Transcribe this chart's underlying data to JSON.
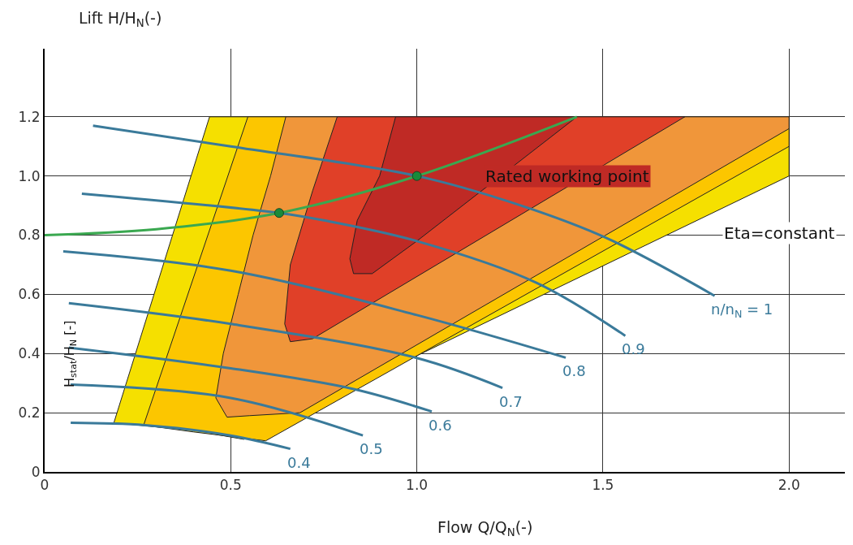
{
  "chart_data": {
    "type": "line",
    "xlabel": "Flow Q/Q$_{N}$(-)",
    "ylabel": "Lift H/H$_{N}$(-)",
    "xlim": [
      0,
      2.15
    ],
    "ylim": [
      0,
      1.43
    ],
    "xticks": [
      0,
      0.5,
      {
        "value": 1.0,
        "label": "1.0"
      },
      1.5,
      {
        "value": 2.0,
        "label": "2.0"
      }
    ],
    "yticks": [
      0,
      0.2,
      0.4,
      0.6,
      0.8,
      {
        "value": 1.0,
        "label": "1.0"
      },
      1.2
    ],
    "grid": true,
    "line_style": "solid",
    "series": [
      {
        "type": "area",
        "color": "#f5e000",
        "x": [
          0.443,
          2.0,
          2.0,
          0.535,
          0.4,
          0.186
        ],
        "values": [
          1.2,
          1.2,
          1.0,
          0.11,
          0.14,
          0.166
        ]
      },
      {
        "type": "area",
        "color": "#fcc600",
        "x": [
          0.546,
          2.0,
          2.0,
          0.594,
          0.4,
          0.266
        ],
        "values": [
          1.2,
          1.2,
          1.1,
          0.105,
          0.135,
          0.158
        ]
      },
      {
        "type": "area",
        "color": "#f0963a",
        "x": [
          0.648,
          2.0,
          2.0,
          0.686,
          0.55,
          0.49,
          0.46,
          0.48,
          0.52,
          0.56,
          0.607
        ],
        "values": [
          1.2,
          1.2,
          1.16,
          0.2,
          0.19,
          0.185,
          0.25,
          0.4,
          0.6,
          0.8,
          1.0
        ]
      },
      {
        "type": "area",
        "color": "#e04028",
        "x": [
          0.786,
          1.72,
          0.72,
          0.66,
          0.645,
          0.66,
          0.72
        ],
        "values": [
          1.2,
          1.2,
          0.45,
          0.44,
          0.5,
          0.7,
          0.95
        ]
      },
      {
        "type": "area",
        "color": "#bf2a25",
        "x": [
          0.943,
          1.43,
          1.0,
          0.88,
          0.83,
          0.82,
          0.84,
          0.9
        ],
        "values": [
          1.2,
          1.2,
          0.78,
          0.67,
          0.67,
          0.72,
          0.85,
          1.0
        ]
      },
      {
        "name": "n/n$_{N}$ = 1",
        "color": "#3a7a9a",
        "x": [
          0.13,
          0.5,
          1.0,
          1.28,
          1.51,
          1.8
        ],
        "values": [
          1.17,
          1.1,
          1.0,
          0.9,
          0.79,
          0.595
        ]
      },
      {
        "name": "0.9",
        "color": "#3a7a9a",
        "x": [
          0.1,
          0.63,
          0.75,
          1.0,
          1.32,
          1.56
        ],
        "values": [
          0.94,
          0.875,
          0.85,
          0.78,
          0.64,
          0.46
        ]
      },
      {
        "name": "0.8",
        "color": "#3a7a9a",
        "x": [
          0.05,
          0.5,
          1.0,
          1.4
        ],
        "values": [
          0.745,
          0.68,
          0.53,
          0.386
        ]
      },
      {
        "name": "0.7",
        "color": "#3a7a9a",
        "x": [
          0.065,
          0.5,
          1.0,
          1.23
        ],
        "values": [
          0.57,
          0.5,
          0.385,
          0.284
        ]
      },
      {
        "name": "0.6",
        "color": "#3a7a9a",
        "x": [
          0.065,
          0.5,
          0.83,
          1.04
        ],
        "values": [
          0.42,
          0.35,
          0.28,
          0.204
        ]
      },
      {
        "name": "0.5",
        "color": "#3a7a9a",
        "x": [
          0.07,
          0.5,
          0.855
        ],
        "values": [
          0.295,
          0.25,
          0.123
        ]
      },
      {
        "name": "0.4",
        "color": "#3a7a9a",
        "x": [
          0.07,
          0.27,
          0.5,
          0.66
        ],
        "values": [
          0.166,
          0.158,
          0.123,
          0.078
        ]
      },
      {
        "color": "#3aa850",
        "x": [
          0,
          0.3,
          0.63,
          1.0,
          1.43
        ],
        "values": [
          0.8,
          0.82,
          0.875,
          1.0,
          1.2
        ]
      },
      {
        "type": "scatter",
        "marker": "circle",
        "color": "#1a8a3a",
        "x": [
          0.63,
          1.0
        ],
        "values": [
          0.875,
          1.0
        ]
      }
    ],
    "annotations": [
      "Rated working point",
      "Eta=constant",
      "H$_{stat}$/H$_{N}$ [-]"
    ]
  }
}
